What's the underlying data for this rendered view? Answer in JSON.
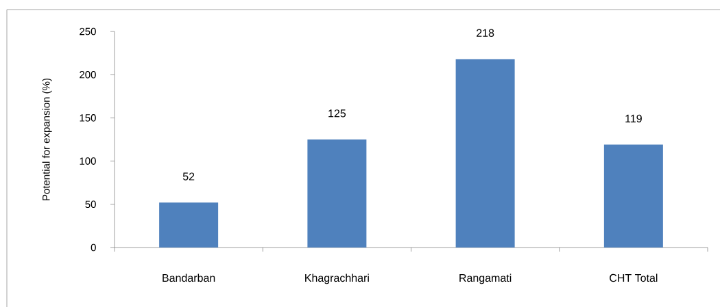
{
  "chart_data": {
    "type": "bar",
    "ylabel": "Potential for expansion (%)",
    "categories": [
      "Bandarban",
      "Khagrachhari",
      "Rangamati",
      "CHT Total"
    ],
    "values": [
      52,
      125,
      218,
      119
    ],
    "color": "#4f81bd",
    "ylim": [
      0,
      250
    ],
    "yticks": [
      0,
      50,
      100,
      150,
      200,
      250
    ],
    "data_labels": true
  }
}
